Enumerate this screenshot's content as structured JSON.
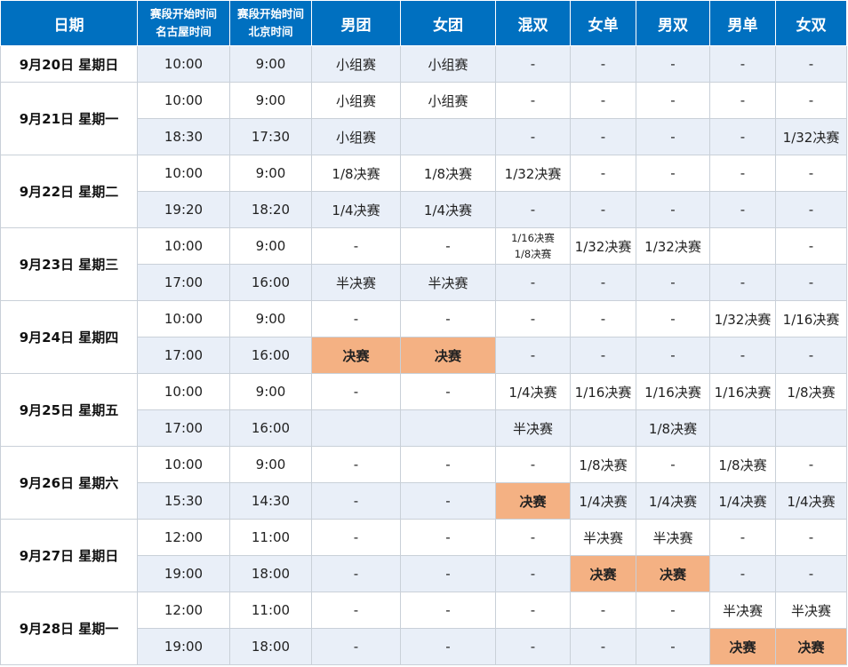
{
  "colors": {
    "header_bg": "#0070c0",
    "header_text": "#ffffff",
    "stripe": "#e9eff8",
    "final_highlight": "#f4b183"
  },
  "headers": [
    "日期",
    "赛段开始时间\n名古屋时间",
    "赛段开始时间\n北京时间",
    "男团",
    "女团",
    "混双",
    "女单",
    "男双",
    "男单",
    "女双"
  ],
  "groups": [
    {
      "date": "9月20日 星期日",
      "rows": [
        {
          "nagoya": "10:00",
          "beijing": "9:00",
          "cells": [
            "小组赛",
            "小组赛",
            "-",
            "-",
            "-",
            "-",
            "-"
          ]
        }
      ]
    },
    {
      "date": "9月21日 星期一",
      "rows": [
        {
          "nagoya": "10:00",
          "beijing": "9:00",
          "cells": [
            "小组赛",
            "小组赛",
            "-",
            "-",
            "-",
            "-",
            "-"
          ]
        },
        {
          "nagoya": "18:30",
          "beijing": "17:30",
          "cells": [
            "小组赛",
            "",
            "-",
            "-",
            "-",
            "-",
            "1/32决赛"
          ]
        }
      ]
    },
    {
      "date": "9月22日 星期二",
      "rows": [
        {
          "nagoya": "10:00",
          "beijing": "9:00",
          "cells": [
            "1/8决赛",
            "1/8决赛",
            "1/32决赛",
            "-",
            "-",
            "-",
            "-"
          ]
        },
        {
          "nagoya": "19:20",
          "beijing": "18:20",
          "cells": [
            "1/4决赛",
            "1/4决赛",
            "-",
            "-",
            "-",
            "-",
            "-"
          ]
        }
      ]
    },
    {
      "date": "9月23日 星期三",
      "rows": [
        {
          "nagoya": "10:00",
          "beijing": "9:00",
          "cells": [
            "-",
            "-",
            "1/16决赛\n1/8决赛",
            "1/32决赛",
            "1/32决赛",
            "",
            "-"
          ]
        },
        {
          "nagoya": "17:00",
          "beijing": "16:00",
          "cells": [
            "半决赛",
            "半决赛",
            "-",
            "-",
            "-",
            "-",
            "-"
          ]
        }
      ]
    },
    {
      "date": "9月24日 星期四",
      "rows": [
        {
          "nagoya": "10:00",
          "beijing": "9:00",
          "cells": [
            "-",
            "-",
            "-",
            "-",
            "-",
            "1/32决赛",
            "1/16决赛"
          ]
        },
        {
          "nagoya": "17:00",
          "beijing": "16:00",
          "cells": [
            "决赛",
            "决赛",
            "-",
            "-",
            "-",
            "-",
            "-"
          ]
        }
      ]
    },
    {
      "date": "9月25日 星期五",
      "rows": [
        {
          "nagoya": "10:00",
          "beijing": "9:00",
          "cells": [
            "-",
            "-",
            "1/4决赛",
            "1/16决赛",
            "1/16决赛",
            "1/16决赛",
            "1/8决赛"
          ]
        },
        {
          "nagoya": "17:00",
          "beijing": "16:00",
          "cells": [
            "",
            "",
            "半决赛",
            "",
            "1/8决赛",
            "",
            ""
          ]
        }
      ]
    },
    {
      "date": "9月26日 星期六",
      "rows": [
        {
          "nagoya": "10:00",
          "beijing": "9:00",
          "cells": [
            "-",
            "-",
            "-",
            "1/8决赛",
            "-",
            "1/8决赛",
            "-"
          ]
        },
        {
          "nagoya": "15:30",
          "beijing": "14:30",
          "cells": [
            "-",
            "-",
            "决赛",
            "1/4决赛",
            "1/4决赛",
            "1/4决赛",
            "1/4决赛"
          ]
        }
      ]
    },
    {
      "date": "9月27日 星期日",
      "rows": [
        {
          "nagoya": "12:00",
          "beijing": "11:00",
          "cells": [
            "-",
            "-",
            "-",
            "半决赛",
            "半决赛",
            "-",
            "-"
          ]
        },
        {
          "nagoya": "19:00",
          "beijing": "18:00",
          "cells": [
            "-",
            "-",
            "-",
            "决赛",
            "决赛",
            "-",
            "-"
          ]
        }
      ]
    },
    {
      "date": "9月28日 星期一",
      "rows": [
        {
          "nagoya": "12:00",
          "beijing": "11:00",
          "cells": [
            "-",
            "-",
            "-",
            "-",
            "-",
            "半决赛",
            "半决赛"
          ]
        },
        {
          "nagoya": "19:00",
          "beijing": "18:00",
          "cells": [
            "-",
            "-",
            "-",
            "-",
            "-",
            "决赛",
            "决赛"
          ]
        }
      ]
    }
  ]
}
